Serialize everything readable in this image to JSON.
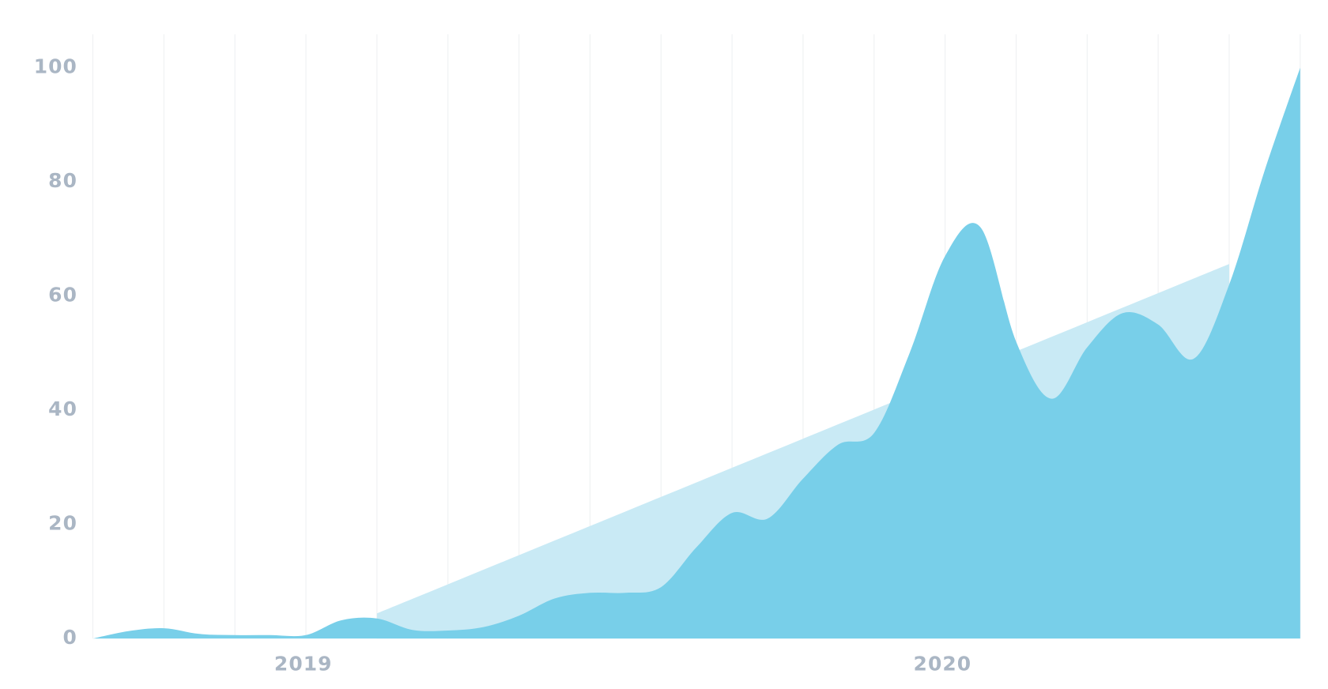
{
  "chart_data": {
    "type": "area",
    "categories": [
      null,
      null,
      null,
      null,
      null,
      null,
      "2019",
      null,
      null,
      null,
      null,
      null,
      null,
      null,
      null,
      null,
      null,
      null,
      null,
      null,
      null,
      null,
      null,
      null,
      "2020",
      null,
      null,
      null,
      null,
      null,
      null,
      null,
      null,
      null,
      null
    ],
    "series": [
      {
        "color": "#c9eaf5",
        "values": [
          null,
          null,
          null,
          null,
          null,
          null,
          null,
          null,
          4.4,
          6.95,
          9.5,
          12.05,
          14.6,
          17.15,
          19.7,
          22.25,
          24.8,
          27.35,
          29.9,
          32.45,
          35,
          37.55,
          40.1,
          42.65,
          45.2,
          47.75,
          50.3,
          52.85,
          55.4,
          57.95,
          60.5,
          63.05,
          65.6,
          null,
          null
        ]
      },
      {
        "color": "#78cfe9",
        "values": [
          0,
          1.3,
          1.8,
          0.8,
          0.6,
          0.6,
          0.6,
          3.2,
          3.5,
          1.5,
          1.4,
          2,
          4,
          7,
          8,
          8,
          9,
          16,
          22,
          21,
          28,
          34,
          36,
          50,
          67,
          72,
          52,
          42,
          51,
          57,
          55,
          49,
          62,
          82,
          100
        ]
      }
    ],
    "ylim": [
      0,
      100
    ],
    "yticks": [
      0,
      20,
      40,
      60,
      80,
      100
    ]
  }
}
